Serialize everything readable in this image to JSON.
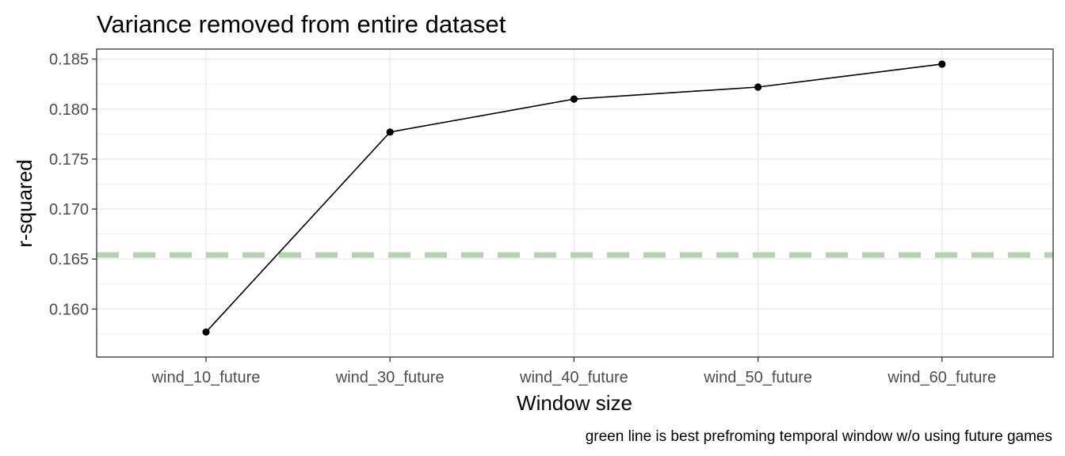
{
  "chart_data": {
    "type": "line",
    "title": "Variance removed from entire dataset",
    "xlabel": "Window size",
    "ylabel": "r-squared",
    "caption": "green line is best prefroming temporal window w/o using future games",
    "categories": [
      "wind_10_future",
      "wind_30_future",
      "wind_40_future",
      "wind_50_future",
      "wind_60_future"
    ],
    "series": [
      {
        "values": [
          0.1577,
          0.1777,
          0.181,
          0.1822,
          0.1845
        ],
        "color": "#000000"
      }
    ],
    "reference_line": {
      "y": 0.1654,
      "style": "dashed",
      "color": "#b5d3b0"
    },
    "ylim": [
      0.1552,
      0.186
    ],
    "y_ticks": [
      0.16,
      0.165,
      0.17,
      0.175,
      0.18,
      0.185
    ],
    "y_tick_labels": [
      "0.160",
      "0.165",
      "0.170",
      "0.175",
      "0.180",
      "0.185"
    ],
    "grid": true,
    "theme": "bw"
  }
}
